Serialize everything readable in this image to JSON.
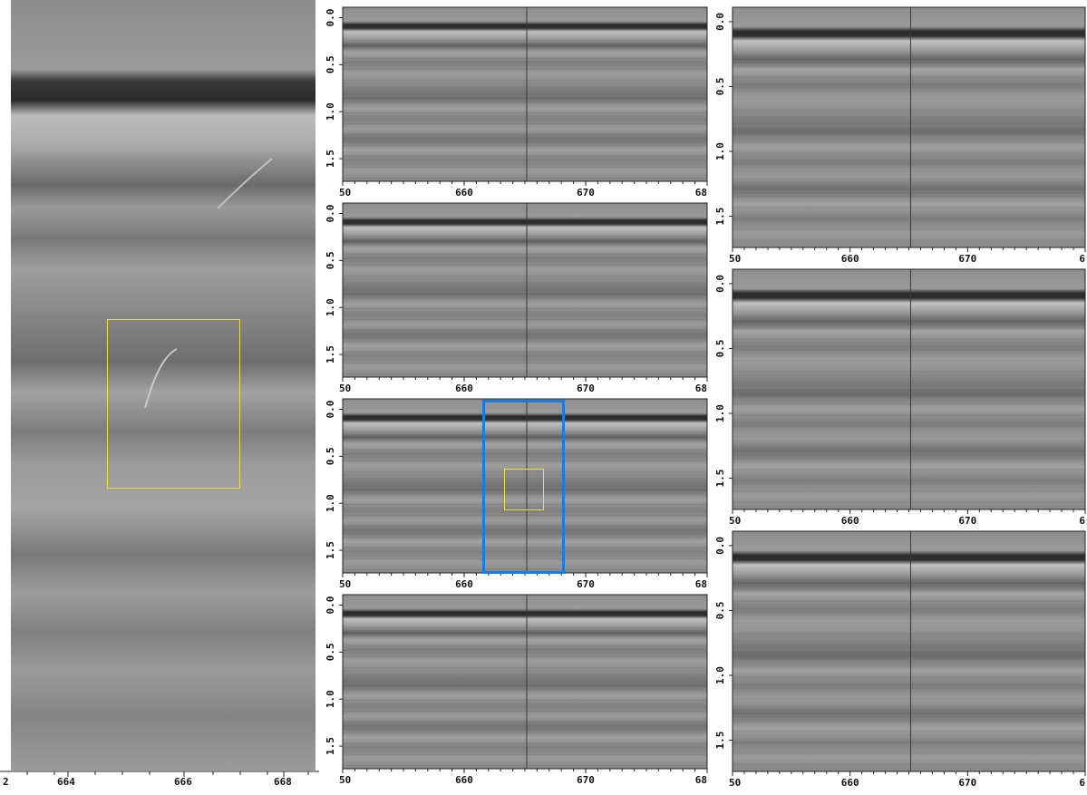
{
  "zoom": {
    "x_ticks": [
      "2",
      "664",
      "666",
      "668"
    ]
  },
  "panels": [
    {
      "id": "m1",
      "x_ticks": [
        "50",
        "660",
        "670",
        "68"
      ],
      "y_ticks": [
        "0.0",
        "0.5",
        "1.0",
        "1.5"
      ]
    },
    {
      "id": "m2",
      "x_ticks": [
        "50",
        "660",
        "670",
        "68"
      ],
      "y_ticks": [
        "0.0",
        "0.5",
        "1.0",
        "1.5"
      ]
    },
    {
      "id": "m3",
      "x_ticks": [
        "50",
        "660",
        "670",
        "68"
      ],
      "y_ticks": [
        "0.0",
        "0.5",
        "1.0",
        "1.5"
      ]
    },
    {
      "id": "m4",
      "x_ticks": [
        "50",
        "660",
        "670",
        "68"
      ],
      "y_ticks": [
        "0.0",
        "0.5",
        "1.0",
        "1.5"
      ]
    },
    {
      "id": "r1",
      "x_ticks": [
        "50",
        "660",
        "670",
        "6"
      ],
      "y_ticks": [
        "0.0",
        "0.5",
        "1.0",
        "1.5"
      ]
    },
    {
      "id": "r2",
      "x_ticks": [
        "50",
        "660",
        "670",
        "6"
      ],
      "y_ticks": [
        "0.0",
        "0.5",
        "1.0",
        "1.5"
      ]
    },
    {
      "id": "r3",
      "x_ticks": [
        "50",
        "660",
        "670",
        "6"
      ],
      "y_ticks": [
        "0.0",
        "0.5",
        "1.0",
        "1.5"
      ]
    }
  ],
  "colors": {
    "highlight_yellow": "#e8e04a",
    "highlight_blue": "#1a7be0",
    "background_gray": "#8a8a8a"
  }
}
